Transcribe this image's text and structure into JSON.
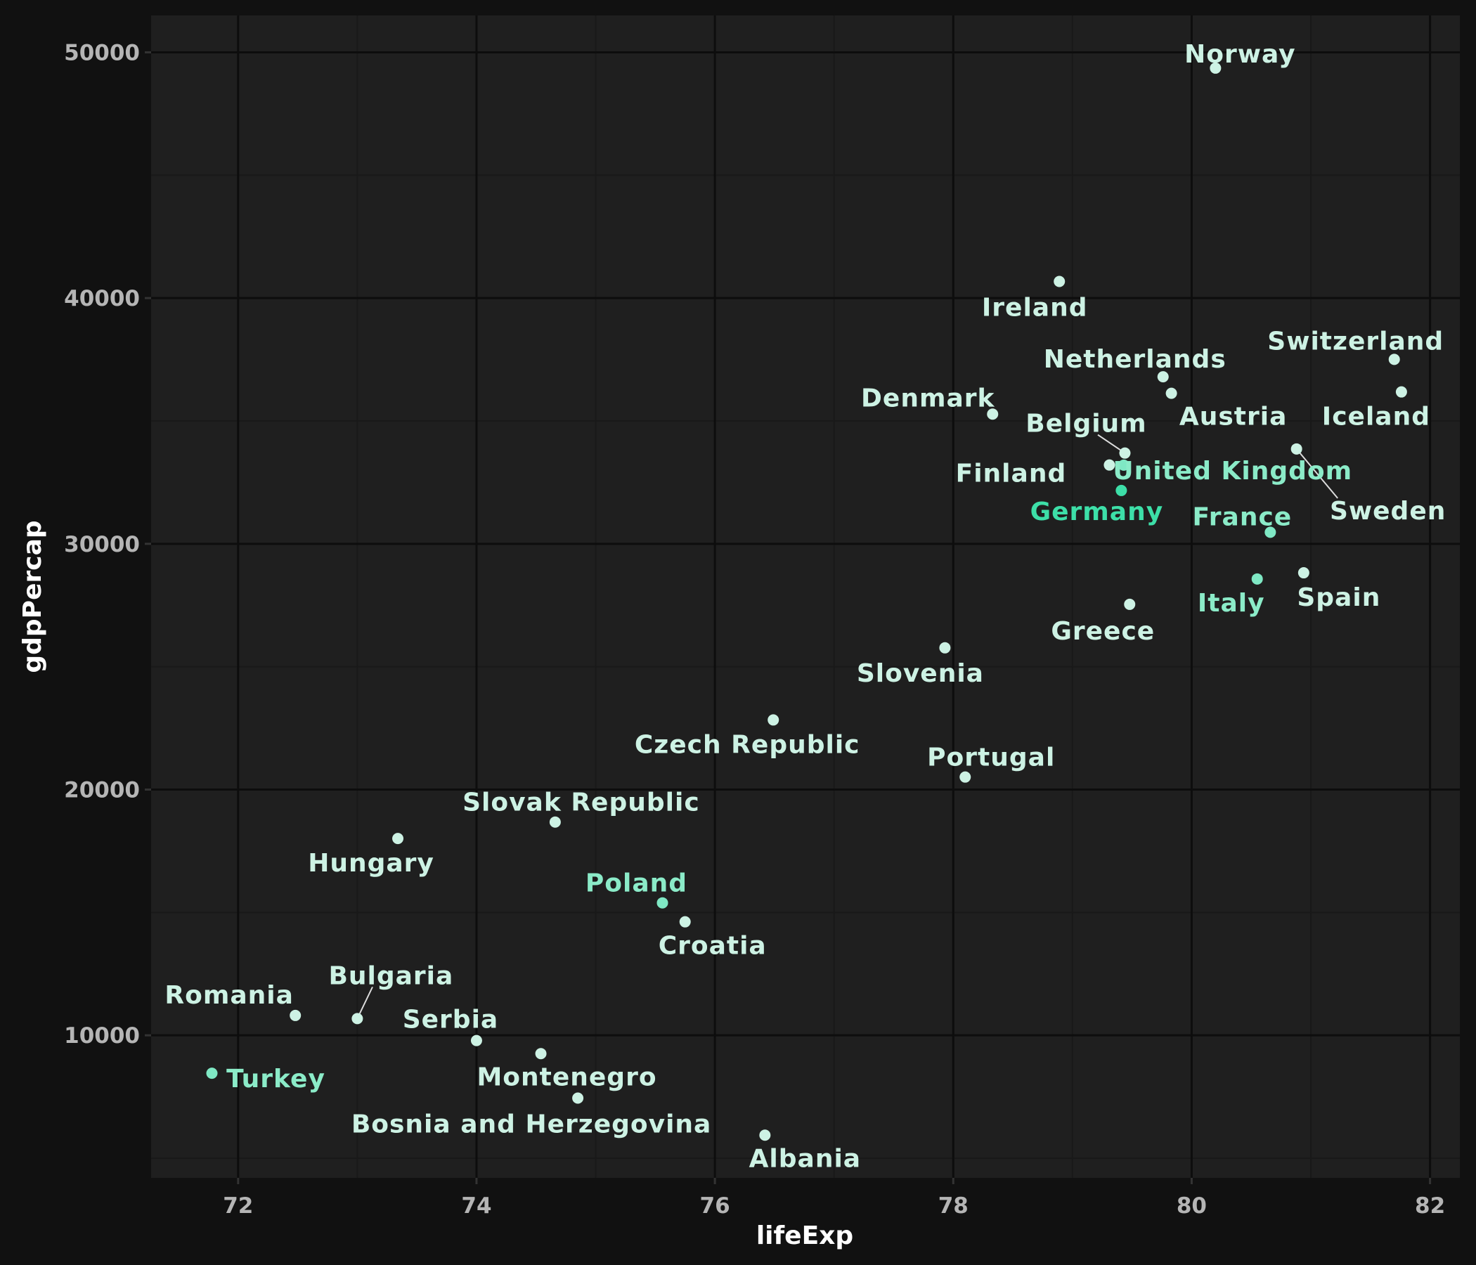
{
  "chart_data": {
    "type": "scatter",
    "title": "",
    "xlabel": "lifeExp",
    "ylabel": "gdpPercap",
    "xlim": [
      71.27,
      82.25
    ],
    "ylim": [
      4200,
      51500
    ],
    "x_ticks": [
      72,
      74,
      76,
      78,
      80,
      82
    ],
    "y_ticks": [
      10000,
      20000,
      30000,
      40000,
      50000
    ],
    "grid": true,
    "colors": {
      "background": "#111111",
      "panel": "#1f1f1f",
      "grid_major": "#0d0d0d",
      "grid_minor": "#191919",
      "point_default": "#cdf2e4",
      "label_default": "#cdf2e4",
      "point_highlight": "#7fe8c4",
      "label_highlight": "#8bebc8",
      "point_strong": "#3ddfa8",
      "label_strong": "#3ddfa8",
      "leader_line": "#dddddd"
    },
    "points": [
      {
        "country": "Norway",
        "lifeExp": 80.2,
        "gdpPercap": 49357,
        "group": "default"
      },
      {
        "country": "Ireland",
        "lifeExp": 78.89,
        "gdpPercap": 40676,
        "group": "default"
      },
      {
        "country": "Switzerland",
        "lifeExp": 81.7,
        "gdpPercap": 37506,
        "group": "default"
      },
      {
        "country": "Netherlands",
        "lifeExp": 79.76,
        "gdpPercap": 36798,
        "group": "default"
      },
      {
        "country": "Iceland",
        "lifeExp": 81.76,
        "gdpPercap": 36181,
        "group": "default"
      },
      {
        "country": "Austria",
        "lifeExp": 79.83,
        "gdpPercap": 36126,
        "group": "default"
      },
      {
        "country": "Denmark",
        "lifeExp": 78.33,
        "gdpPercap": 35278,
        "group": "default"
      },
      {
        "country": "Sweden",
        "lifeExp": 80.88,
        "gdpPercap": 33860,
        "group": "default"
      },
      {
        "country": "Belgium",
        "lifeExp": 79.44,
        "gdpPercap": 33693,
        "group": "default"
      },
      {
        "country": "Finland",
        "lifeExp": 79.31,
        "gdpPercap": 33207,
        "group": "default"
      },
      {
        "country": "United Kingdom",
        "lifeExp": 79.43,
        "gdpPercap": 33203,
        "group": "highlight"
      },
      {
        "country": "Germany",
        "lifeExp": 79.41,
        "gdpPercap": 32170,
        "group": "strong"
      },
      {
        "country": "France",
        "lifeExp": 80.66,
        "gdpPercap": 30470,
        "group": "highlight"
      },
      {
        "country": "Spain",
        "lifeExp": 80.94,
        "gdpPercap": 28821,
        "group": "default"
      },
      {
        "country": "Italy",
        "lifeExp": 80.55,
        "gdpPercap": 28570,
        "group": "highlight"
      },
      {
        "country": "Greece",
        "lifeExp": 79.48,
        "gdpPercap": 27538,
        "group": "default"
      },
      {
        "country": "Slovenia",
        "lifeExp": 77.93,
        "gdpPercap": 25768,
        "group": "default"
      },
      {
        "country": "Czech Republic",
        "lifeExp": 76.49,
        "gdpPercap": 22833,
        "group": "default"
      },
      {
        "country": "Portugal",
        "lifeExp": 78.1,
        "gdpPercap": 20510,
        "group": "default"
      },
      {
        "country": "Slovak Republic",
        "lifeExp": 74.66,
        "gdpPercap": 18678,
        "group": "default"
      },
      {
        "country": "Hungary",
        "lifeExp": 73.34,
        "gdpPercap": 18009,
        "group": "default"
      },
      {
        "country": "Poland",
        "lifeExp": 75.56,
        "gdpPercap": 15390,
        "group": "highlight"
      },
      {
        "country": "Croatia",
        "lifeExp": 75.75,
        "gdpPercap": 14619,
        "group": "default"
      },
      {
        "country": "Romania",
        "lifeExp": 72.48,
        "gdpPercap": 10808,
        "group": "default"
      },
      {
        "country": "Bulgaria",
        "lifeExp": 73.0,
        "gdpPercap": 10681,
        "group": "default"
      },
      {
        "country": "Serbia",
        "lifeExp": 74.0,
        "gdpPercap": 9787,
        "group": "default"
      },
      {
        "country": "Montenegro",
        "lifeExp": 74.54,
        "gdpPercap": 9254,
        "group": "default"
      },
      {
        "country": "Turkey",
        "lifeExp": 71.78,
        "gdpPercap": 8458,
        "group": "highlight"
      },
      {
        "country": "Bosnia and Herzegovina",
        "lifeExp": 74.85,
        "gdpPercap": 7446,
        "group": "default"
      },
      {
        "country": "Albania",
        "lifeExp": 76.42,
        "gdpPercap": 5937,
        "group": "default"
      }
    ]
  }
}
